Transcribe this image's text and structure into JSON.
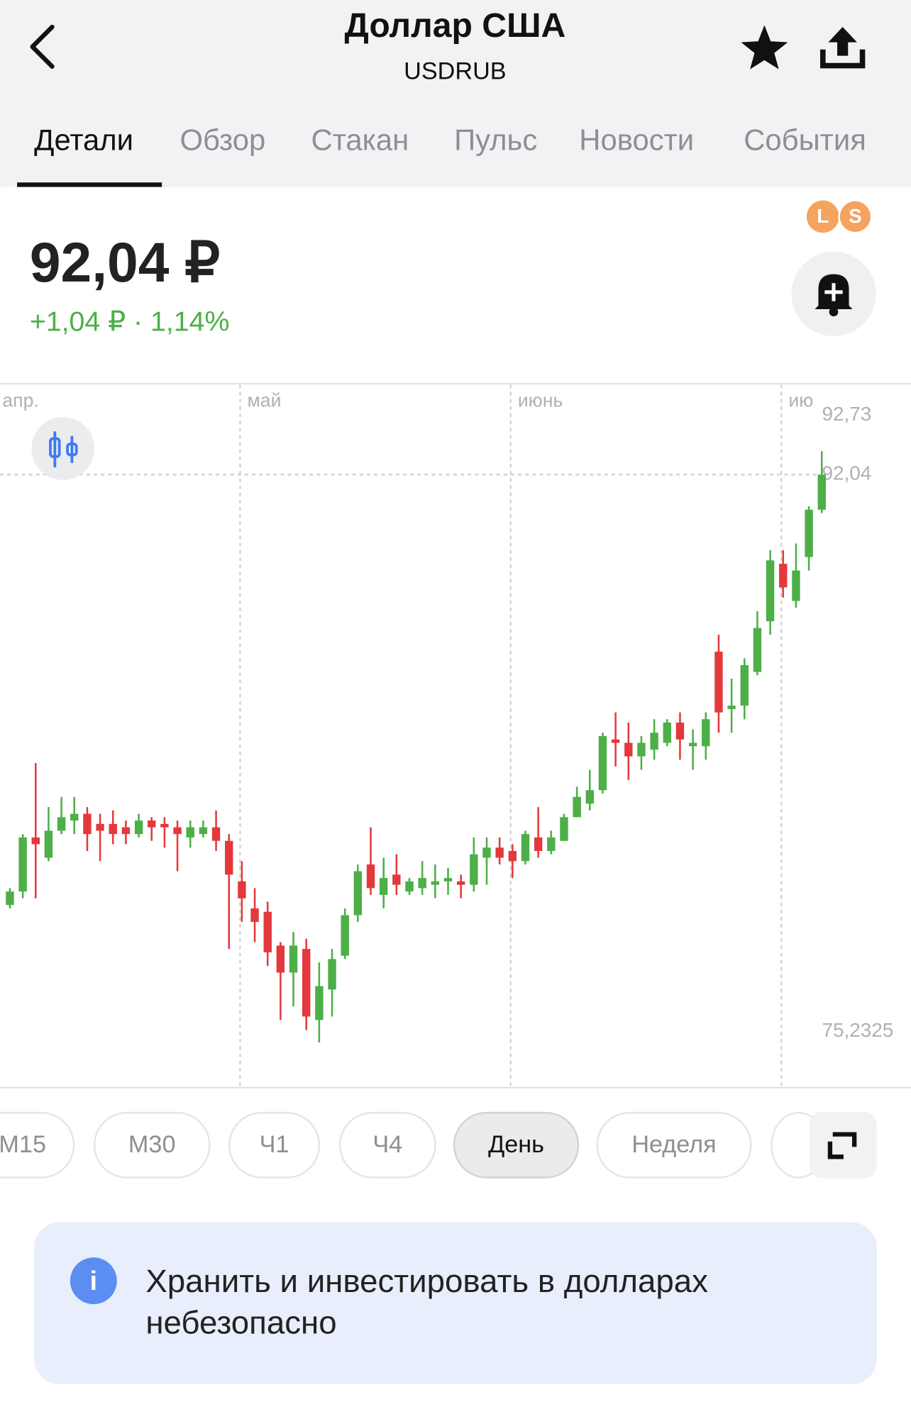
{
  "header": {
    "title": "Доллар США",
    "subtitle": "USDRUB"
  },
  "tabs": [
    "Детали",
    "Обзор",
    "Стакан",
    "Пульс",
    "Новости",
    "События"
  ],
  "price": {
    "value": "92,04 ₽",
    "change": "+1,04 ₽ · 1,14%",
    "badges": [
      "L",
      "S"
    ]
  },
  "chart_data": {
    "type": "candlestick",
    "up_color": "#4caf47",
    "down_color": "#e3393c",
    "xticks": [
      {
        "value": -1,
        "label": "апр."
      },
      {
        "value": 18,
        "label": "май"
      },
      {
        "value": 39,
        "label": "июнь"
      },
      {
        "value": 60,
        "label": "ию"
      }
    ],
    "ylim": [
      73.95,
      94.7
    ],
    "yticks": [
      {
        "value": 92.73,
        "label": "92,73"
      },
      {
        "value": 92.04,
        "label": "92,04"
      },
      {
        "value": 75.2325,
        "label": "75,2325"
      }
    ],
    "open": [
      79.3,
      79.7,
      81.3,
      80.7,
      81.5,
      81.8,
      82.0,
      81.7,
      81.7,
      81.6,
      81.4,
      81.8,
      81.7,
      81.6,
      81.3,
      81.4,
      81.6,
      81.2,
      80.0,
      79.2,
      79.1,
      78.1,
      77.3,
      78.0,
      75.9,
      76.8,
      77.8,
      79.0,
      80.5,
      79.6,
      80.2,
      79.7,
      79.8,
      79.9,
      80.0,
      80.0,
      79.9,
      80.7,
      81.0,
      80.9,
      80.6,
      81.3,
      80.9,
      81.2,
      81.9,
      82.3,
      82.7,
      84.2,
      84.1,
      83.7,
      83.9,
      84.1,
      84.7,
      84.0,
      84.0,
      86.8,
      85.1,
      85.2,
      86.2,
      87.7,
      89.4,
      88.3,
      89.6,
      91.0
    ],
    "high": [
      79.8,
      81.4,
      83.5,
      82.2,
      82.5,
      82.5,
      82.2,
      82.0,
      82.1,
      81.8,
      82.0,
      81.9,
      81.9,
      81.8,
      81.8,
      81.8,
      82.1,
      81.4,
      80.6,
      79.8,
      79.4,
      78.2,
      78.5,
      78.3,
      77.6,
      78.0,
      79.2,
      80.5,
      81.6,
      80.7,
      80.8,
      80.1,
      80.6,
      80.5,
      80.4,
      80.2,
      81.3,
      81.3,
      81.3,
      81.1,
      81.5,
      82.2,
      81.5,
      82.0,
      82.8,
      83.3,
      84.4,
      85.0,
      84.7,
      84.3,
      84.8,
      84.8,
      85.0,
      84.5,
      85.0,
      87.3,
      86.0,
      86.6,
      88.0,
      89.8,
      89.8,
      90.0,
      91.1,
      92.73
    ],
    "low": [
      79.2,
      79.5,
      79.5,
      80.6,
      81.4,
      81.4,
      80.9,
      80.6,
      81.1,
      81.1,
      81.3,
      81.2,
      81.0,
      80.3,
      81.0,
      81.3,
      80.9,
      78.0,
      78.8,
      78.2,
      77.5,
      75.9,
      76.3,
      75.6,
      75.2325,
      76.0,
      77.7,
      78.8,
      79.6,
      79.2,
      79.6,
      79.6,
      79.6,
      79.5,
      79.6,
      79.5,
      79.7,
      79.9,
      80.5,
      80.1,
      80.5,
      80.7,
      80.8,
      81.2,
      81.9,
      82.1,
      82.6,
      83.4,
      83.0,
      83.3,
      83.6,
      84.0,
      83.6,
      83.3,
      83.6,
      84.4,
      84.4,
      84.8,
      86.1,
      87.3,
      88.4,
      88.1,
      89.2,
      90.9
    ],
    "close": [
      79.7,
      81.3,
      81.1,
      81.5,
      81.9,
      82.0,
      81.4,
      81.5,
      81.4,
      81.4,
      81.8,
      81.6,
      81.6,
      81.4,
      81.6,
      81.6,
      81.2,
      80.2,
      79.5,
      78.8,
      77.9,
      77.3,
      78.1,
      76.0,
      76.9,
      77.7,
      79.0,
      80.3,
      79.8,
      80.1,
      79.9,
      80.0,
      80.1,
      80.0,
      80.1,
      79.9,
      80.8,
      81.0,
      80.7,
      80.6,
      81.4,
      80.9,
      81.3,
      81.9,
      82.5,
      82.7,
      84.3,
      84.1,
      83.7,
      84.1,
      84.4,
      84.7,
      84.2,
      84.1,
      84.8,
      85.0,
      85.2,
      86.4,
      87.5,
      89.5,
      88.7,
      89.2,
      91.0,
      92.04
    ]
  },
  "timeframes": [
    "M15",
    "M30",
    "Ч1",
    "Ч4",
    "День",
    "Неделя"
  ],
  "notice": {
    "icon": "i",
    "lines": [
      "Хранить и инвестировать в долларах",
      "небезопасно"
    ]
  }
}
